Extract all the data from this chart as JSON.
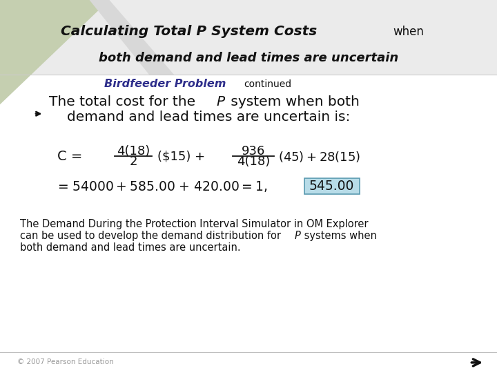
{
  "bg_color": "#ebebeb",
  "header_bg": "#c5cfb0",
  "white_bg": "#ffffff",
  "dark_color": "#111111",
  "purple_color": "#2e2e8b",
  "highlight_box_color": "#b8dce8",
  "highlight_box_edge": "#5a9ab0",
  "title_bold": "Calculating Total P System Costs",
  "title_when": "when",
  "title_sub": "both demand and lead times are uncertain",
  "birdfeeder_label": "Birdfeeder Problem",
  "continued_label": "continued",
  "copyright": "© 2007 Pearson Education"
}
